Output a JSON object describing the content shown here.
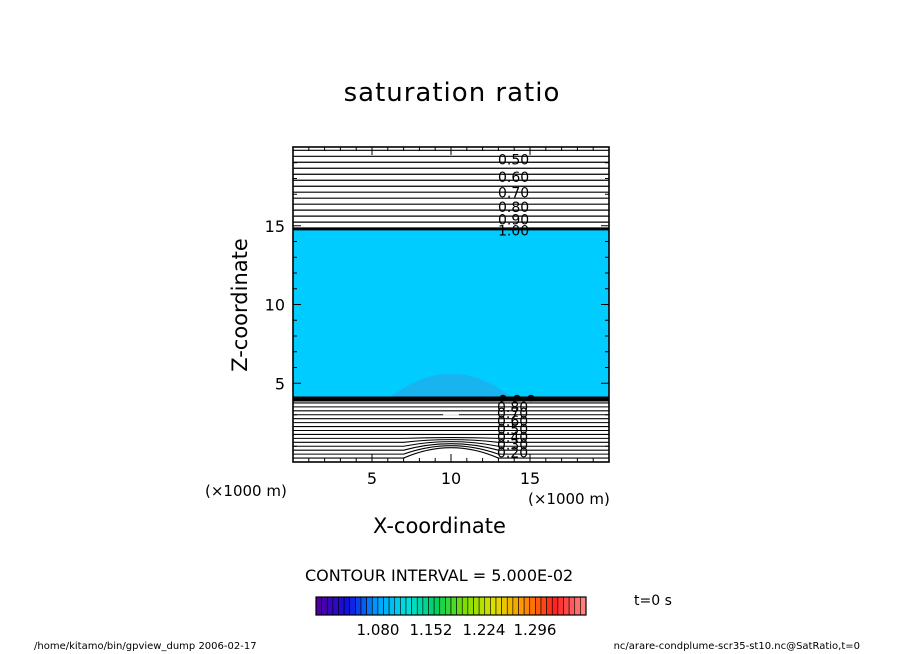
{
  "chart_data": {
    "type": "heatmap",
    "title": "saturation ratio",
    "xlabel": "X-coordinate",
    "ylabel": "Z-coordinate",
    "x_unit": "(×1000 m)",
    "xlim": [
      0,
      20
    ],
    "ylim": [
      0,
      20
    ],
    "x_ticks": [
      5,
      10,
      15
    ],
    "y_ticks": [
      5,
      10,
      15
    ],
    "fill_region": {
      "z_from": 4.0,
      "z_to": 14.8,
      "color": "#00ccff"
    },
    "bump": {
      "x_center": 10,
      "half_width": 4,
      "z_base": 4.0,
      "z_top": 5.6,
      "color": "#18b4f0"
    },
    "contour_interval": "CONTOUR INTERVAL = 5.000E-02",
    "upper_contour_labels": [
      "0.50",
      "0.60",
      "0.70",
      "0.80",
      "0.90",
      "1.00"
    ],
    "upper_contour_label_z": [
      19.2,
      18.1,
      17.1,
      16.2,
      15.4,
      14.7
    ],
    "lower_contour_labels": [
      "0.80",
      "0.70",
      "0.60",
      "0.50",
      "0.40",
      "0.30",
      "0.20"
    ],
    "lower_contour_label_z": [
      3.5,
      3.1,
      2.6,
      2.1,
      1.6,
      1.1,
      0.6
    ],
    "colorbar": {
      "ticks": [
        "1.080",
        "1.152",
        "1.224",
        "1.296"
      ],
      "stops": [
        "#5000a0",
        "#1010e0",
        "#00a0ff",
        "#00e0e0",
        "#00d060",
        "#80e000",
        "#e0e000",
        "#ff9000",
        "#ff2020",
        "#ff8080"
      ]
    }
  },
  "labels": {
    "title": "saturation ratio",
    "xlabel": "X-coordinate",
    "ylabel": "Z-coordinate",
    "x_unit": "(×1000 m)",
    "interval": "CONTOUR INTERVAL = 5.000E-02",
    "time": "t=0 s",
    "footer_left": "/home/kitamo/bin/gpview_dump  2006-02-17",
    "footer_right": "nc/arare-condplume-scr35-st10.nc@SatRatio,t=0"
  }
}
